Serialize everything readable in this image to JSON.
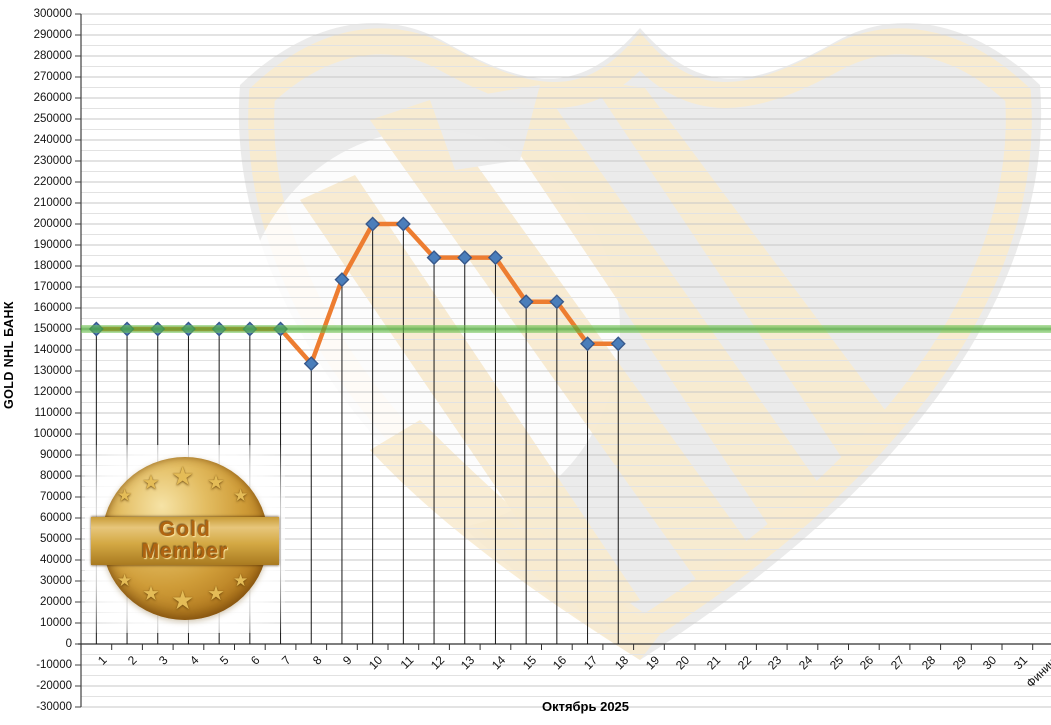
{
  "chart_data": {
    "type": "line",
    "title": "",
    "ylabel": "GOLD NHL  БАНК",
    "xlabel": "Октябрь 2025",
    "ylim": [
      -30000,
      300000
    ],
    "ytick_step": 10000,
    "yminor_step": 5000,
    "grid": true,
    "legend": false,
    "yticks": [
      "300000",
      "290000",
      "280000",
      "270000",
      "260000",
      "250000",
      "240000",
      "230000",
      "220000",
      "210000",
      "200000",
      "190000",
      "180000",
      "170000",
      "160000",
      "150000",
      "140000",
      "130000",
      "120000",
      "110000",
      "100000",
      "90000",
      "80000",
      "70000",
      "60000",
      "50000",
      "40000",
      "30000",
      "20000",
      "10000",
      "0",
      "-10000",
      "-20000",
      "-30000"
    ],
    "categories": [
      "1",
      "2",
      "3",
      "4",
      "5",
      "6",
      "7",
      "8",
      "9",
      "10",
      "11",
      "12",
      "13",
      "14",
      "15",
      "16",
      "17",
      "18",
      "19",
      "20",
      "21",
      "22",
      "23",
      "24",
      "25",
      "26",
      "27",
      "28",
      "29",
      "30",
      "31",
      "Финиш"
    ],
    "series": [
      {
        "name": "GOLD NHL банк",
        "color": "#ED7D31",
        "marker": "diamond",
        "marker_color": "#4A7EBB",
        "marker_border_color": "#38598C",
        "values": [
          150000,
          150000,
          150000,
          150000,
          150000,
          150000,
          150000,
          133500,
          173500,
          200000,
          200000,
          184000,
          184000,
          184000,
          163000,
          163000,
          143000,
          143000,
          null,
          null,
          null,
          null,
          null,
          null,
          null,
          null,
          null,
          null,
          null,
          null,
          null,
          null
        ]
      }
    ],
    "reference_line": {
      "value": 150000,
      "color": "#46A830"
    },
    "drop_lines": true
  },
  "medal": {
    "line1": "Gold",
    "line2": "Member"
  },
  "watermark": {
    "icon": "nhl-shield-logo"
  }
}
